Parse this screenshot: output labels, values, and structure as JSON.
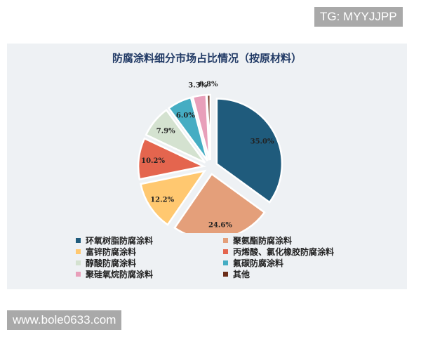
{
  "watermarks": {
    "top": "TG: MYYJJPP",
    "bottom": "www.bole0633.com"
  },
  "colors": {
    "panel_background": "#eef1f4",
    "title": "#1f3864"
  },
  "chart_data": {
    "type": "pie",
    "title": "防腐涂料细分市场占比情况（按原材料）",
    "legend_position": "bottom",
    "exploded": true,
    "slices": [
      {
        "name": "环氧树脂防腐涂料",
        "value": 35.0,
        "label": "35.0%",
        "color": "#1f5b7c"
      },
      {
        "name": "聚氨酯防腐涂料",
        "value": 24.6,
        "label": "24.6%",
        "color": "#e49f7a"
      },
      {
        "name": "富锌防腐涂料",
        "value": 12.2,
        "label": "12.2%",
        "color": "#ffc870"
      },
      {
        "name": "丙烯酸、氯化橡胶防腐涂料",
        "value": 10.2,
        "label": "10.2%",
        "color": "#e4654e"
      },
      {
        "name": "醇酸防腐涂料",
        "value": 7.9,
        "label": "7.9%",
        "color": "#d4e2d0"
      },
      {
        "name": "氟碳防腐涂料",
        "value": 6.0,
        "label": "6.0%",
        "color": "#45adc3"
      },
      {
        "name": "聚硅氧烷防腐涂料",
        "value": 3.3,
        "label": "3.3%",
        "color": "#e89fba"
      },
      {
        "name": "其他",
        "value": 0.8,
        "label": "0.8%",
        "color": "#6b2d18"
      }
    ]
  }
}
